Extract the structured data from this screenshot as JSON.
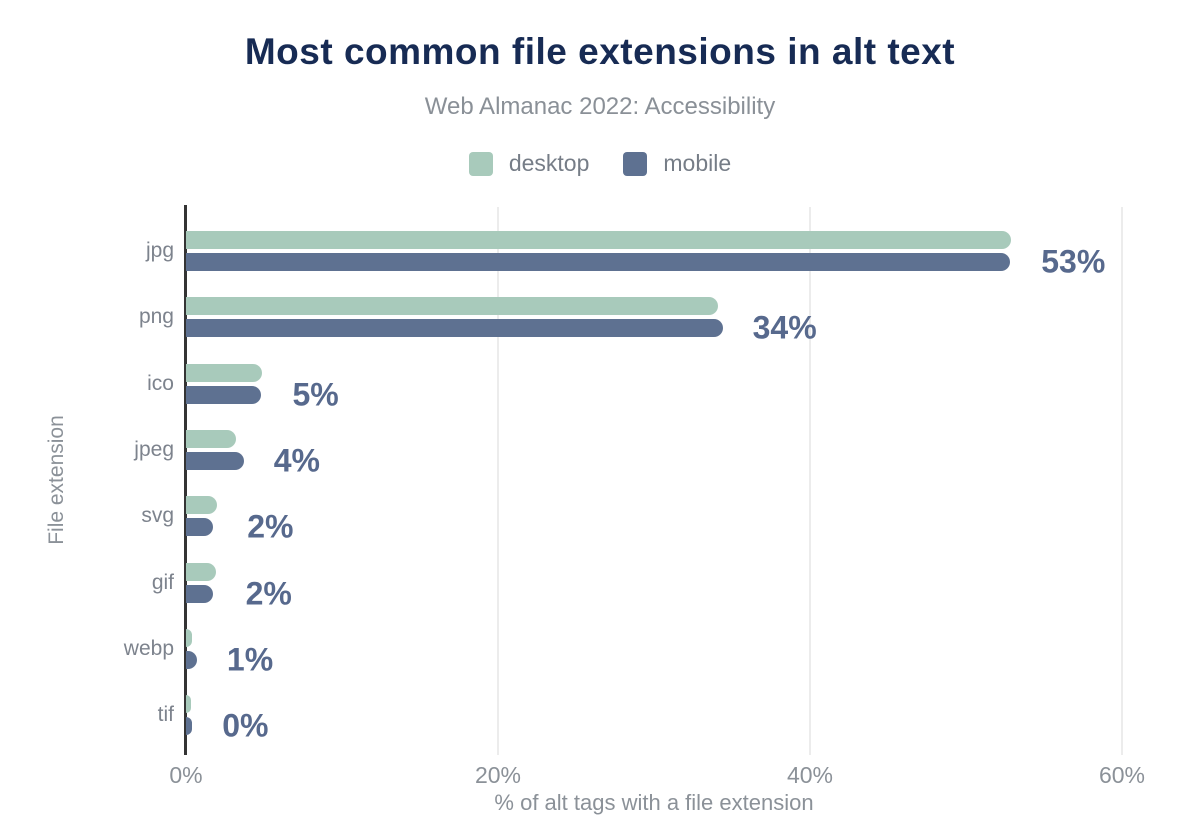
{
  "title": "Most common file extensions in alt text",
  "subtitle": "Web Almanac 2022: Accessibility",
  "legend": {
    "items": [
      {
        "label": "desktop",
        "color": "#a8cabb"
      },
      {
        "label": "mobile",
        "color": "#5e7191"
      }
    ]
  },
  "colors": {
    "title": "#172b54",
    "muted_text": "#8a9097",
    "category_text": "#7d838d",
    "value_label": "#57698d",
    "axis_line": "#343434",
    "gridline": "#ececec",
    "desktop_bar": "#a8cabb",
    "mobile_bar": "#5e7191"
  },
  "chart_data": {
    "type": "bar",
    "orientation": "horizontal",
    "title": "Most common file extensions in alt text",
    "subtitle": "Web Almanac 2022: Accessibility",
    "categories": [
      "jpg",
      "png",
      "ico",
      "jpeg",
      "svg",
      "gif",
      "webp",
      "tif"
    ],
    "series": [
      {
        "name": "desktop",
        "color": "#a8cabb",
        "values": [
          52.9,
          34.1,
          4.9,
          3.2,
          2.0,
          1.9,
          0.4,
          0.3
        ]
      },
      {
        "name": "mobile",
        "color": "#5e7191",
        "values": [
          52.8,
          34.4,
          4.8,
          3.7,
          1.7,
          1.7,
          0.7,
          0.4
        ]
      }
    ],
    "value_labels": [
      "53%",
      "34%",
      "5%",
      "4%",
      "2%",
      "2%",
      "1%",
      "0%"
    ],
    "xlabel": "% of alt tags with a file extension",
    "ylabel": "File extension",
    "xlim": [
      0,
      60
    ],
    "x_ticks": [
      {
        "value": 0,
        "label": "0%"
      },
      {
        "value": 20,
        "label": "20%"
      },
      {
        "value": 40,
        "label": "40%"
      },
      {
        "value": 60,
        "label": "60%"
      }
    ],
    "grid": "vertical-gridlines-at-ticks",
    "legend_position": "top-center"
  }
}
